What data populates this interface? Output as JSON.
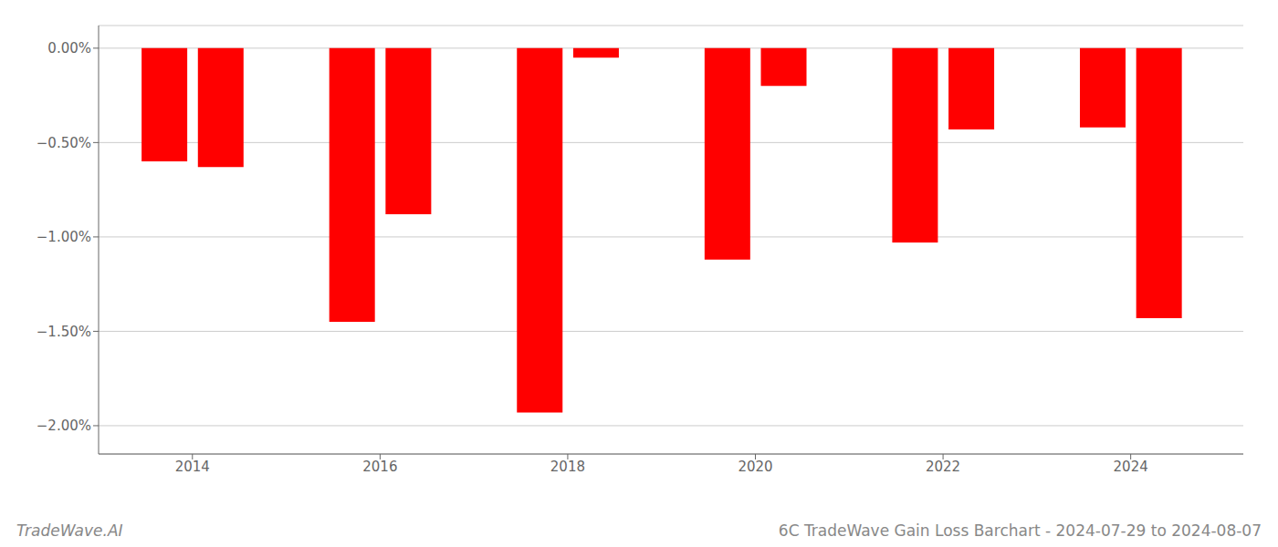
{
  "chart_data": {
    "type": "bar",
    "title": "6C TradeWave Gain Loss Barchart - 2024-07-29 to 2024-08-07",
    "annotations": [
      "TradeWave.AI"
    ],
    "x": [
      2013.7,
      2014.3,
      2015.7,
      2016.3,
      2017.7,
      2018.3,
      2019.7,
      2020.3,
      2021.7,
      2022.3,
      2023.7,
      2024.3
    ],
    "values": [
      -0.006,
      -0.0063,
      -0.0145,
      -0.0088,
      -0.0193,
      -0.0005,
      -0.0112,
      -0.002,
      -0.0103,
      -0.0043,
      -0.0042,
      -0.0143
    ],
    "color": "#ff0000",
    "xlim": [
      2013.0,
      2025.2
    ],
    "xticks": [
      2014,
      2016,
      2018,
      2020,
      2022,
      2024
    ],
    "ylim": [
      -0.0215,
      0.0012
    ],
    "yticks": [
      {
        "value": 0.0,
        "label": "0.00%"
      },
      {
        "value": -0.005,
        "label": "−0.50%"
      },
      {
        "value": -0.01,
        "label": "−1.00%"
      },
      {
        "value": -0.015,
        "label": "−1.50%"
      },
      {
        "value": -0.02,
        "label": "−2.00%"
      }
    ],
    "grid": true
  }
}
